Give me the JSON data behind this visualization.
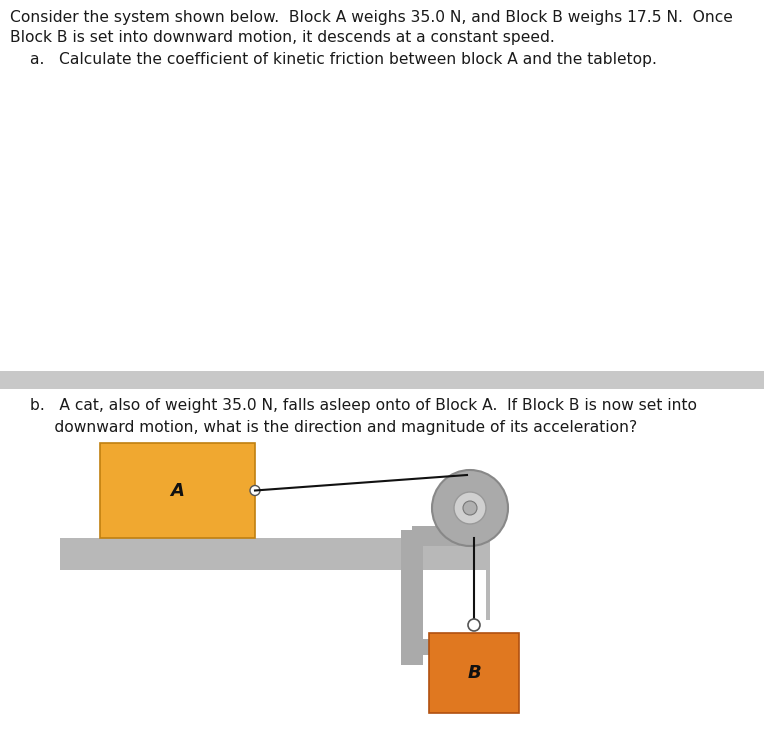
{
  "bg_color": "#ffffff",
  "text_color": "#1a1a1a",
  "title_line1": "Consider the system shown below.  Block A weighs 35.0 N, and Block B weighs 17.5 N.  Once",
  "title_line2": "Block B is set into downward motion, it descends at a constant speed.",
  "part_a": "a.   Calculate the coefficient of kinetic friction between block A and the tabletop.",
  "part_b_line1": "b.   A cat, also of weight 35.0 N, falls asleep onto of Block A.  If Block B is now set into",
  "part_b_line2": "     downward motion, what is the direction and magnitude of its acceleration?",
  "block_A_color": "#F0A830",
  "block_A_edge": "#c08010",
  "block_B_color": "#E07820",
  "block_B_edge": "#b05010",
  "table_color_top": "#C8C8C8",
  "table_color_main": "#B8B8B8",
  "clamp_color": "#AAAAAA",
  "clamp_dark": "#909090",
  "pulley_rim": "#AAAAAA",
  "pulley_face": "#BEBEBE",
  "pulley_hub": "#888888",
  "rope_color": "#111111",
  "divider_color": "#C8C8C8",
  "label_A": "A",
  "label_B": "B",
  "font_size_text": 11.2,
  "font_size_label": 13
}
